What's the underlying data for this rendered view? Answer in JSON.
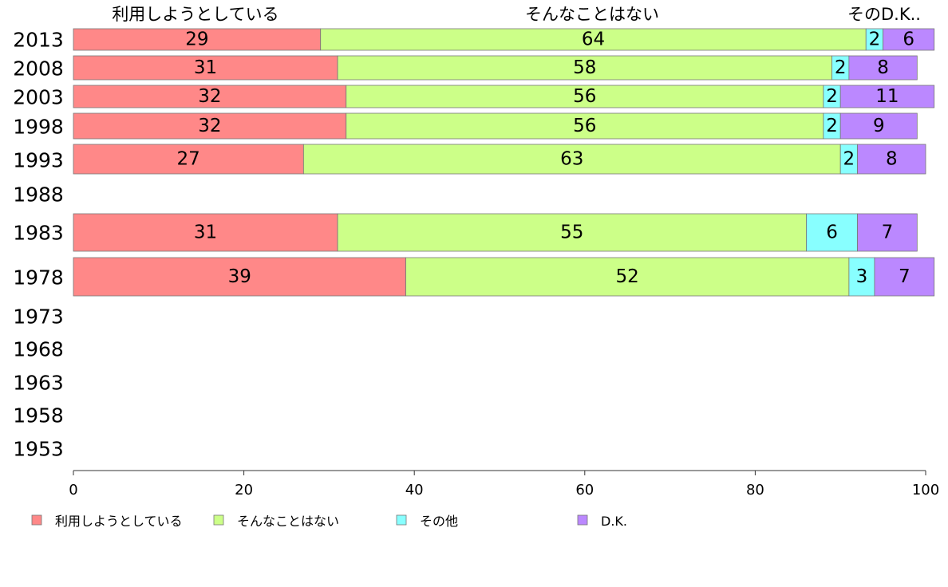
{
  "chart_data": {
    "type": "bar",
    "orientation": "horizontal",
    "stacked": true,
    "categories": [
      "2013",
      "2008",
      "2003",
      "1998",
      "1993",
      "1988",
      "1983",
      "1978",
      "1973",
      "1968",
      "1963",
      "1958",
      "1953"
    ],
    "series": [
      {
        "name": "利用しようとしている",
        "color": "#ff8888",
        "values": [
          29,
          31,
          32,
          32,
          27,
          null,
          31,
          39,
          null,
          null,
          null,
          null,
          null
        ]
      },
      {
        "name": "そんなことはない",
        "color": "#ccff88",
        "values": [
          64,
          58,
          56,
          56,
          63,
          null,
          55,
          52,
          null,
          null,
          null,
          null,
          null
        ]
      },
      {
        "name": "その他",
        "color": "#88ffff",
        "values": [
          2,
          2,
          2,
          2,
          2,
          null,
          6,
          3,
          null,
          null,
          null,
          null,
          null
        ]
      },
      {
        "name": "D.K.",
        "color": "#bb88ff",
        "values": [
          6,
          8,
          11,
          9,
          8,
          null,
          7,
          7,
          null,
          null,
          null,
          null,
          null
        ]
      }
    ],
    "top_labels": [
      "利用しようとしている",
      "そんなことはない",
      "そのD.K.."
    ],
    "xlim": [
      0,
      100
    ],
    "xticks": [
      "0",
      "20",
      "40",
      "60",
      "80",
      "100"
    ],
    "grid": false,
    "legend_position": "bottom"
  }
}
